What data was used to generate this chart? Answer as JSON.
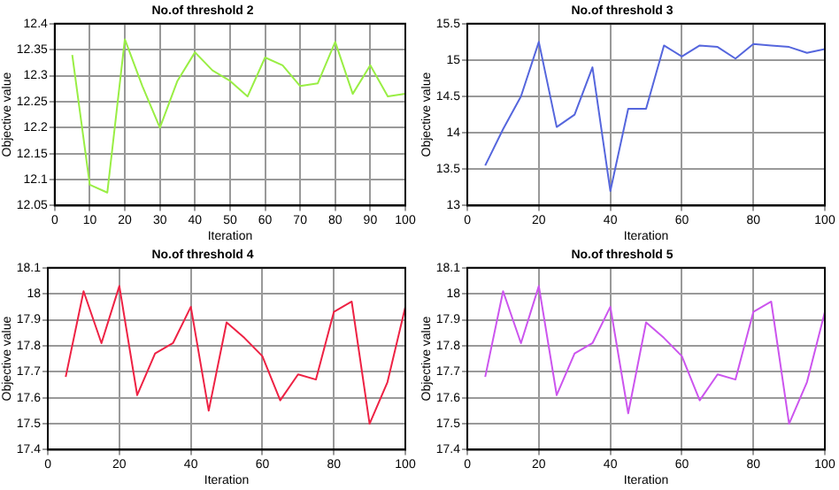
{
  "chart_data": [
    {
      "type": "line",
      "title": "No.of threshold 2",
      "xlabel": "Iteration",
      "ylabel": "Objective value",
      "x": [
        5,
        10,
        15,
        20,
        25,
        30,
        35,
        40,
        45,
        50,
        55,
        60,
        65,
        70,
        75,
        80,
        85,
        90,
        95,
        100
      ],
      "series": [
        {
          "color": "#99ee44",
          "values": [
            12.34,
            12.09,
            12.075,
            12.37,
            12.28,
            12.2,
            12.29,
            12.345,
            12.31,
            12.29,
            12.26,
            12.335,
            12.32,
            12.28,
            12.285,
            12.365,
            12.265,
            12.32,
            12.26,
            12.265
          ]
        }
      ],
      "xlim": [
        0,
        100
      ],
      "xticks": [
        0,
        10,
        20,
        30,
        40,
        50,
        60,
        70,
        80,
        90,
        100
      ],
      "ylim": [
        12.05,
        12.4
      ],
      "yticks": [
        12.05,
        12.1,
        12.15,
        12.2,
        12.25,
        12.3,
        12.35,
        12.4
      ],
      "grid": true,
      "marker": "none",
      "line_style": "solid"
    },
    {
      "type": "line",
      "title": "No.of threshold 3",
      "xlabel": "Iteration",
      "ylabel": "Objective value",
      "x": [
        5,
        10,
        15,
        20,
        25,
        30,
        35,
        40,
        45,
        50,
        55,
        60,
        65,
        70,
        75,
        80,
        85,
        90,
        95,
        100
      ],
      "series": [
        {
          "color": "#5566dd",
          "values": [
            13.55,
            14.05,
            14.5,
            15.25,
            14.08,
            14.25,
            14.9,
            13.2,
            14.33,
            14.33,
            15.2,
            15.05,
            15.2,
            15.18,
            15.02,
            15.22,
            15.2,
            15.18,
            15.1,
            15.15
          ]
        }
      ],
      "xlim": [
        0,
        100
      ],
      "xticks": [
        0,
        20,
        40,
        60,
        80,
        100
      ],
      "ylim": [
        13,
        15.5
      ],
      "yticks": [
        13,
        13.5,
        14,
        14.5,
        15,
        15.5
      ],
      "grid": true,
      "marker": "none",
      "line_style": "solid"
    },
    {
      "type": "line",
      "title": "No.of threshold 4",
      "xlabel": "Iteration",
      "ylabel": "Objective value",
      "x": [
        5,
        10,
        15,
        20,
        25,
        30,
        35,
        40,
        45,
        50,
        55,
        60,
        65,
        70,
        75,
        80,
        85,
        90,
        95,
        100
      ],
      "series": [
        {
          "color": "#ee2244",
          "values": [
            17.68,
            18.01,
            17.81,
            18.03,
            17.61,
            17.77,
            17.81,
            17.95,
            17.55,
            17.89,
            17.83,
            17.76,
            17.59,
            17.69,
            17.67,
            17.93,
            17.97,
            17.5,
            17.66,
            17.95
          ]
        }
      ],
      "xlim": [
        0,
        100
      ],
      "xticks": [
        0,
        20,
        40,
        60,
        80,
        100
      ],
      "ylim": [
        17.4,
        18.1
      ],
      "yticks": [
        17.4,
        17.5,
        17.6,
        17.7,
        17.8,
        17.9,
        18,
        18.1
      ],
      "grid": true,
      "marker": "none",
      "line_style": "solid"
    },
    {
      "type": "line",
      "title": "No.of threshold 5",
      "xlabel": "Iteration",
      "ylabel": "Objective value",
      "x": [
        5,
        10,
        15,
        20,
        25,
        30,
        35,
        40,
        45,
        50,
        55,
        60,
        65,
        70,
        75,
        80,
        85,
        90,
        95,
        100
      ],
      "series": [
        {
          "color": "#cc55ee",
          "values": [
            17.68,
            18.01,
            17.81,
            18.03,
            17.61,
            17.77,
            17.81,
            17.95,
            17.54,
            17.89,
            17.83,
            17.76,
            17.59,
            17.69,
            17.67,
            17.93,
            17.97,
            17.5,
            17.66,
            17.93
          ]
        }
      ],
      "xlim": [
        0,
        100
      ],
      "xticks": [
        0,
        20,
        40,
        60,
        80,
        100
      ],
      "ylim": [
        17.4,
        18.1
      ],
      "yticks": [
        17.4,
        17.5,
        17.6,
        17.7,
        17.8,
        17.9,
        18,
        18.1
      ],
      "grid": true,
      "marker": "none",
      "line_style": "solid"
    }
  ]
}
